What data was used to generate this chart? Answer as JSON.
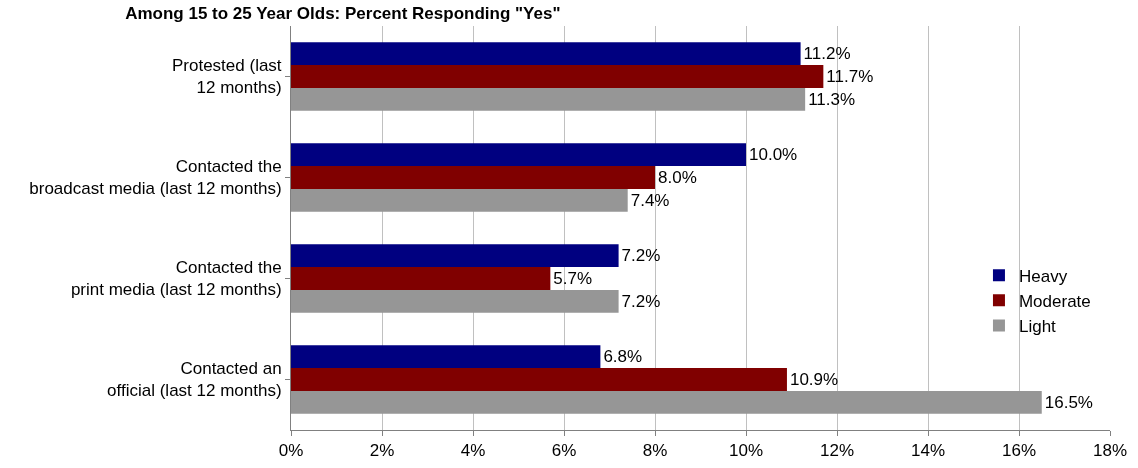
{
  "chart_data": {
    "type": "bar",
    "orientation": "horizontal",
    "title": "Among 15 to 25 Year Olds: Percent Responding \"Yes\"",
    "categories": [
      "Protested (last 12 months)",
      "Contacted the broadcast media (last 12 months)",
      "Contacted the print media (last 12 months)",
      "Contacted an official (last 12 months)"
    ],
    "series": [
      {
        "name": "Heavy",
        "color": "#000080",
        "values": [
          11.2,
          10.0,
          7.2,
          6.8
        ],
        "value_labels": [
          "11.2%",
          "10.0%",
          "7.2%",
          "6.8%"
        ]
      },
      {
        "name": "Moderate",
        "color": "#800000",
        "values": [
          11.7,
          8.0,
          5.7,
          10.9
        ],
        "value_labels": [
          "11.7%",
          "8.0%",
          "5.7%",
          "10.9%"
        ]
      },
      {
        "name": "Light",
        "color": "#969696",
        "values": [
          11.3,
          7.4,
          7.2,
          16.5
        ],
        "value_labels": [
          "11.3%",
          "7.4%",
          "7.2%",
          "16.5%"
        ]
      }
    ],
    "xlim": [
      0,
      18
    ],
    "xticks": [
      {
        "value": 0,
        "label": "0%"
      },
      {
        "value": 2,
        "label": "2%"
      },
      {
        "value": 4,
        "label": "4%"
      },
      {
        "value": 6,
        "label": "6%"
      },
      {
        "value": 8,
        "label": "8%"
      },
      {
        "value": 10,
        "label": "10%"
      },
      {
        "value": 12,
        "label": "12%"
      },
      {
        "value": 14,
        "label": "14%"
      },
      {
        "value": 16,
        "label": "16%"
      },
      {
        "value": 18,
        "label": "18%"
      }
    ],
    "grid": "x",
    "legend": "right"
  }
}
